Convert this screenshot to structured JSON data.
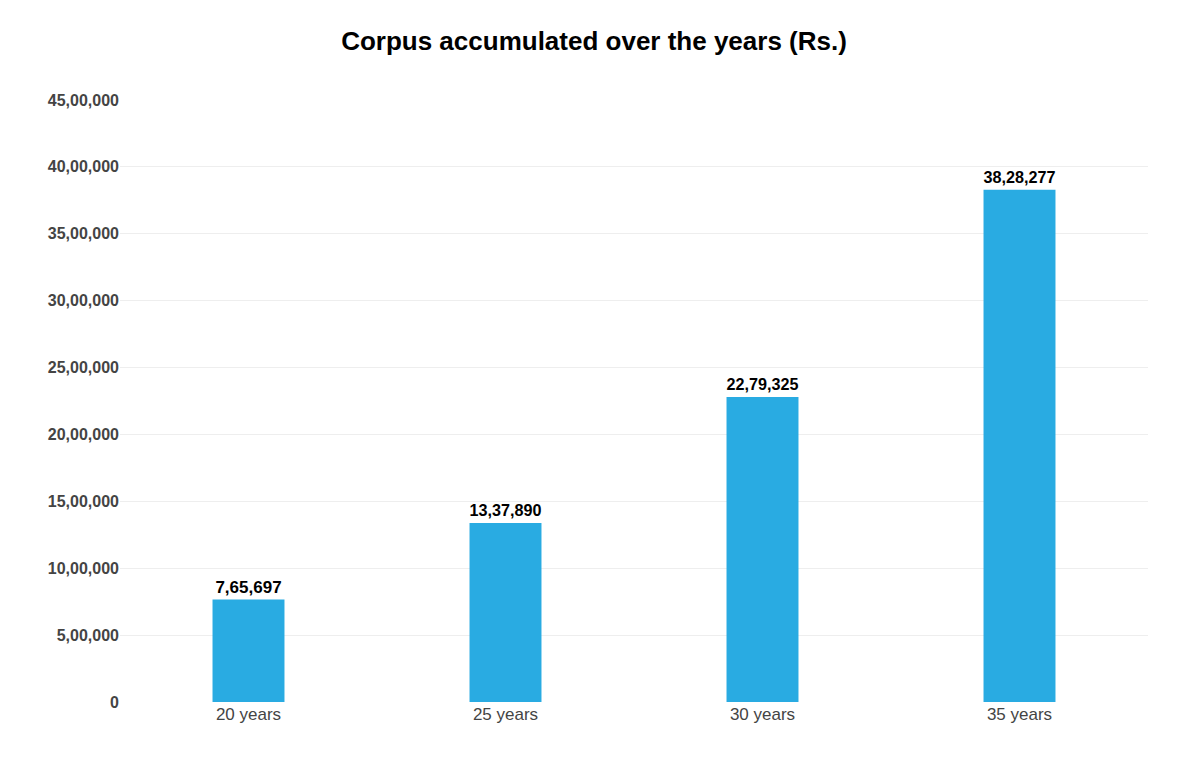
{
  "chart_data": {
    "type": "bar",
    "title": "Corpus accumulated over the years (Rs.)",
    "categories": [
      "20 years",
      "25 years",
      "30 years",
      "35 years"
    ],
    "values": [
      765697,
      1337890,
      2279325,
      3828277
    ],
    "value_labels": [
      "7,65,697",
      "13,37,890",
      "22,79,325",
      "38,28,277"
    ],
    "data_labels": true,
    "color": "#29ABE2",
    "ylim": [
      0,
      4500000
    ],
    "yticks": [
      0,
      {
        "value": 500000,
        "label": "5,00,000"
      },
      {
        "value": 1000000,
        "label": "10,00,000"
      },
      {
        "value": 1500000,
        "label": "15,00,000"
      },
      {
        "value": 2000000,
        "label": "20,00,000"
      },
      {
        "value": 2500000,
        "label": "25,00,000"
      },
      {
        "value": 3000000,
        "label": "30,00,000"
      },
      {
        "value": 3500000,
        "label": "35,00,000"
      },
      {
        "value": 4000000,
        "label": "40,00,000"
      },
      {
        "value": 4500000,
        "label": "45,00,000"
      }
    ],
    "grid": true
  }
}
